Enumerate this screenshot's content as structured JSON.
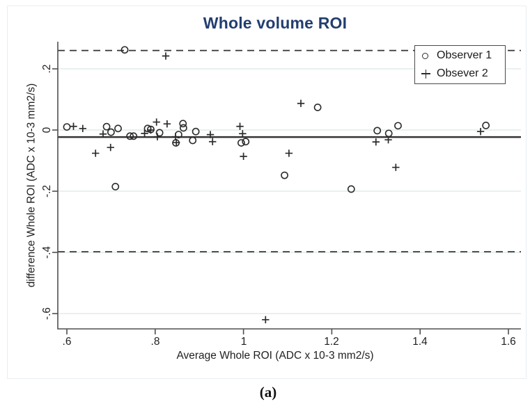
{
  "figure": {
    "title": "Whole volume ROI",
    "caption": "(a)"
  },
  "colors": {
    "title": "#223e70",
    "grid": "#d9e7e8",
    "marker": "#2b2b2b",
    "axis": "#4f4f4f",
    "line": "#333333"
  },
  "chart_data": {
    "type": "scatter",
    "title": "Whole volume ROI",
    "xlabel": "Average Whole ROI (ADC x 10-3 mm2/s)",
    "ylabel": "difference Whole ROI (ADC x 10-3 mm2/s)",
    "xlim": [
      0.58,
      1.63
    ],
    "ylim": [
      -0.65,
      0.29
    ],
    "grid": true,
    "legend_position": "top-right",
    "x_ticks": [
      0.6,
      0.8,
      1,
      1.2,
      1.4,
      1.6
    ],
    "x_tick_labels": [
      ".6",
      ".8",
      "1",
      "1.2",
      "1.4",
      "1.6"
    ],
    "y_ticks": [
      0.2,
      0,
      -0.2,
      -0.4,
      -0.6
    ],
    "y_tick_labels": [
      ".2",
      "0",
      "-.2",
      "-.4",
      "-.6"
    ],
    "reference_lines": [
      {
        "label": "upper limit of agreement",
        "y": 0.26,
        "style": "dashed"
      },
      {
        "label": "mean difference",
        "y": -0.023,
        "style": "solid"
      },
      {
        "label": "lower limit of agreement",
        "y": -0.398,
        "style": "dashed"
      }
    ],
    "series": [
      {
        "name": "Observer 1",
        "marker": "circle",
        "points": [
          [
            0.6,
            0.01
          ],
          [
            0.69,
            0.011
          ],
          [
            0.7,
            -0.007
          ],
          [
            0.71,
            -0.185
          ],
          [
            0.716,
            0.005
          ],
          [
            0.731,
            0.262
          ],
          [
            0.743,
            -0.02
          ],
          [
            0.751,
            -0.02
          ],
          [
            0.783,
            0.005
          ],
          [
            0.79,
            0.002
          ],
          [
            0.81,
            -0.009
          ],
          [
            0.847,
            -0.042
          ],
          [
            0.853,
            -0.015
          ],
          [
            0.863,
            0.021
          ],
          [
            0.864,
            0.007
          ],
          [
            0.885,
            -0.034
          ],
          [
            0.892,
            -0.005
          ],
          [
            0.995,
            -0.042
          ],
          [
            1.005,
            -0.038
          ],
          [
            1.093,
            -0.148
          ],
          [
            1.168,
            0.074
          ],
          [
            1.244,
            -0.193
          ],
          [
            1.303,
            -0.002
          ],
          [
            1.329,
            -0.011
          ],
          [
            1.35,
            0.014
          ],
          [
            1.549,
            0.015
          ]
        ]
      },
      {
        "name": "Obsever 2",
        "marker": "plus",
        "points": [
          [
            0.615,
            0.012
          ],
          [
            0.636,
            0.005
          ],
          [
            0.665,
            -0.076
          ],
          [
            0.682,
            -0.013
          ],
          [
            0.699,
            -0.057
          ],
          [
            0.776,
            -0.011
          ],
          [
            0.79,
            0.0
          ],
          [
            0.803,
            0.026
          ],
          [
            0.805,
            -0.022
          ],
          [
            0.824,
            0.242
          ],
          [
            0.827,
            0.02
          ],
          [
            0.846,
            -0.022
          ],
          [
            0.848,
            -0.041
          ],
          [
            0.925,
            -0.015
          ],
          [
            0.93,
            -0.038
          ],
          [
            0.992,
            0.012
          ],
          [
            0.998,
            -0.012
          ],
          [
            1.0,
            -0.086
          ],
          [
            1.05,
            -0.62
          ],
          [
            1.103,
            -0.076
          ],
          [
            1.13,
            0.087
          ],
          [
            1.3,
            -0.039
          ],
          [
            1.328,
            -0.032
          ],
          [
            1.345,
            -0.122
          ],
          [
            1.537,
            -0.005
          ]
        ]
      }
    ]
  }
}
